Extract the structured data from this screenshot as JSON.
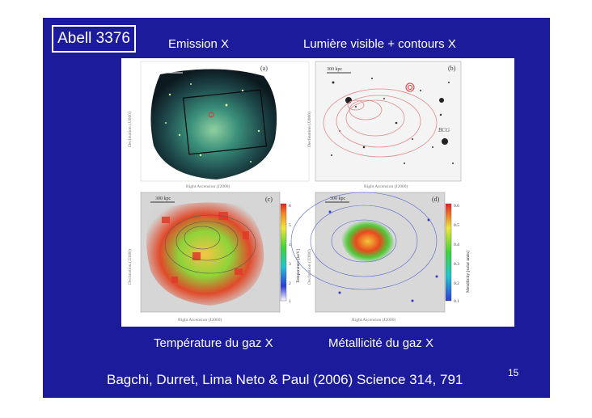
{
  "slide": {
    "title": "Abell 3376",
    "labels": {
      "emission": "Emission X",
      "visible": "Lumière visible + contours X",
      "temperature": "Température du gaz X",
      "metallicity": "Métallicité du gaz X"
    },
    "citation": "Bagchi, Durret, Lima Neto & Paul (2006) Science  314, 791",
    "page_number": "15"
  },
  "figure": {
    "panels": [
      {
        "id": "a",
        "letter": "(a)",
        "scale": "300 kpc"
      },
      {
        "id": "b",
        "letter": "(b)",
        "scale": "300 kpc",
        "annotation": "BCG"
      },
      {
        "id": "c",
        "letter": "(c)",
        "scale": "300 kpc",
        "colorbar_label": "Temperature [keV]",
        "colorbar_ticks": [
          "6",
          "5",
          "4",
          "3",
          "2",
          "1"
        ]
      },
      {
        "id": "d",
        "letter": "(d)",
        "scale": "300 kpc",
        "colorbar_label": "Metallicity [solar units]",
        "colorbar_ticks": [
          "0.6",
          "0.5",
          "0.4",
          "0.3",
          "0.2",
          "0.1"
        ]
      }
    ],
    "axis": {
      "xlabel": "Right Ascension (J2000)",
      "ylabel": "Declination (J2000)"
    }
  }
}
